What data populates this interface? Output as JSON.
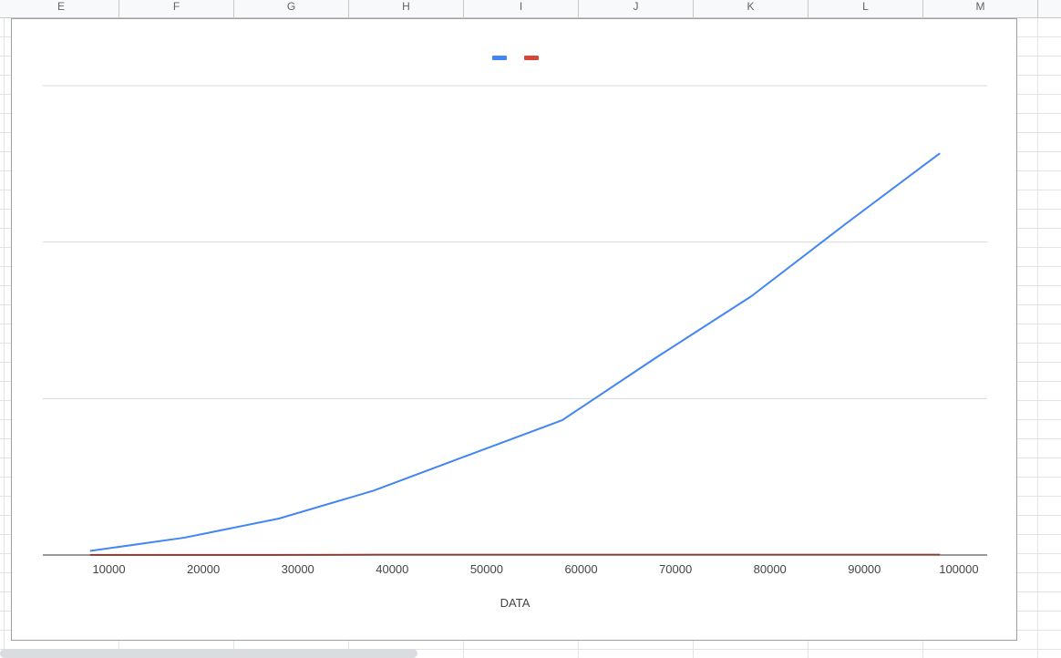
{
  "spreadsheet": {
    "column_headers": [
      "E",
      "F",
      "G",
      "H",
      "I",
      "J",
      "K",
      "L",
      "M"
    ]
  },
  "chart_data": {
    "type": "line",
    "title": "",
    "xlabel": "DATA",
    "ylabel": "",
    "x": [
      8000,
      18000,
      28000,
      38000,
      48000,
      58000,
      68000,
      78000,
      88000,
      98000
    ],
    "x_ticks": [
      10000,
      20000,
      30000,
      40000,
      50000,
      60000,
      70000,
      80000,
      90000,
      100000
    ],
    "xlim": [
      3000,
      103000
    ],
    "ylim": [
      0,
      3
    ],
    "y_gridlines": [
      1,
      2,
      3
    ],
    "series": [
      {
        "values": [
          0.026,
          0.111,
          0.233,
          0.411,
          0.637,
          0.862,
          1.264,
          1.653,
          2.116,
          2.568
        ],
        "color": "#4285f4"
      },
      {
        "values": [
          0.001,
          0.001,
          0.001,
          0.002,
          0.002,
          0.002,
          0.002,
          0.002,
          0.002,
          0.002
        ],
        "color": "#db4437"
      }
    ],
    "legend_position": "top",
    "grid": true
  }
}
